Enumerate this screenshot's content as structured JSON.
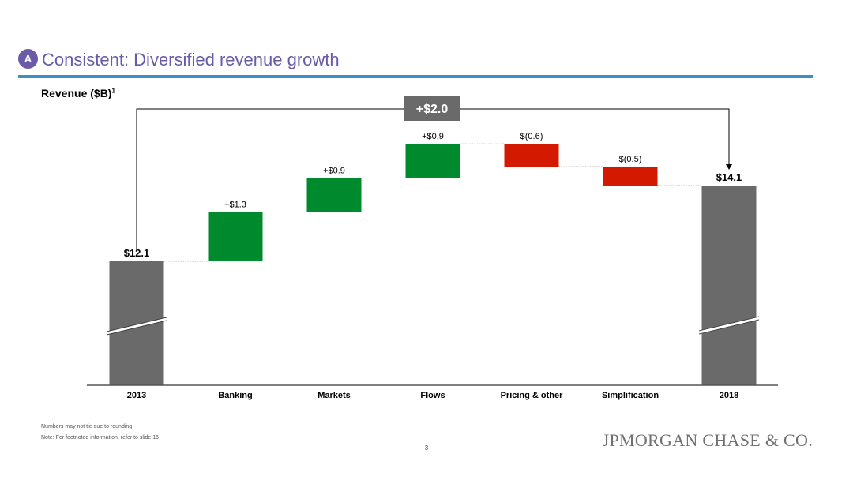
{
  "header": {
    "badge": "A",
    "title": "Consistent: Diversified revenue growth"
  },
  "colors": {
    "accent": "#6a5aa8",
    "rule": "#3a8fc6",
    "total_bar": "#6a6a6a",
    "increase": "#008a2e",
    "decrease": "#d31a00"
  },
  "chart_data": {
    "type": "bar",
    "subtype": "waterfall",
    "title": "Revenue ($B)",
    "title_superscript": "1",
    "categories": [
      "2013",
      "Banking",
      "Markets",
      "Flows",
      "Pricing & other",
      "Simplification",
      "2018"
    ],
    "values": [
      12.1,
      1.3,
      0.9,
      0.9,
      -0.6,
      -0.5,
      14.1
    ],
    "kinds": [
      "total",
      "increase",
      "increase",
      "increase",
      "decrease",
      "decrease",
      "total"
    ],
    "data_labels": [
      "$12.1",
      "+$1.3",
      "+$0.9",
      "+$0.9",
      "$(0.6)",
      "$(0.5)",
      "$14.1"
    ],
    "total_change_label": "+$2.0",
    "axis_break": true,
    "grid": false
  },
  "footer": {
    "note1": "Numbers may not tie due to rounding",
    "note2": "Note: For footnoted information, refer to slide 16",
    "page_number": "3",
    "logo_text": "JPMORGAN CHASE & CO."
  }
}
